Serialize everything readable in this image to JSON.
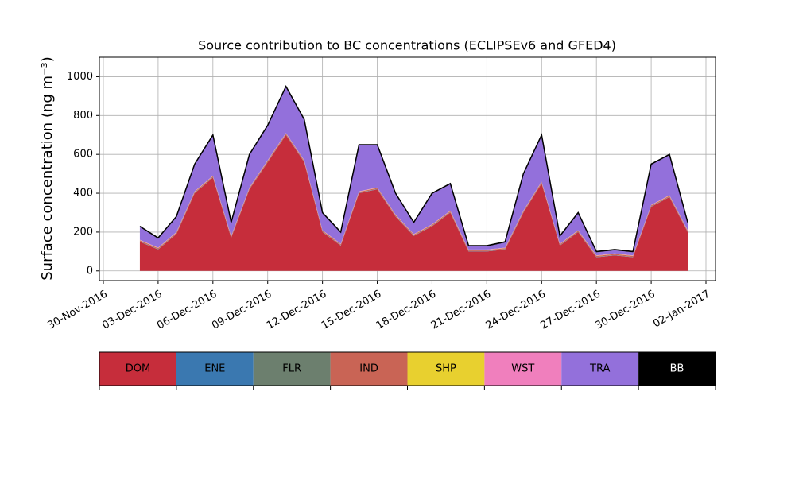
{
  "chart_data": {
    "type": "stacked_area",
    "title": "Source contribution to BC concentrations (ECLIPSEv6 and GFED4)",
    "y_label": "Surface concentration (ng m⁻³)",
    "x": [
      "2016-12-02",
      "2016-12-03",
      "2016-12-04",
      "2016-12-05",
      "2016-12-06",
      "2016-12-07",
      "2016-12-08",
      "2016-12-09",
      "2016-12-10",
      "2016-12-11",
      "2016-12-12",
      "2016-12-13",
      "2016-12-14",
      "2016-12-15",
      "2016-12-16",
      "2016-12-17",
      "2016-12-18",
      "2016-12-19",
      "2016-12-20",
      "2016-12-21",
      "2016-12-22",
      "2016-12-23",
      "2016-12-24",
      "2016-12-25",
      "2016-12-26",
      "2016-12-27",
      "2016-12-28",
      "2016-12-29",
      "2016-12-30",
      "2016-12-31",
      "2017-01-01"
    ],
    "series": [
      {
        "name": "DOM",
        "color": "#c62d3b",
        "values": [
          150,
          110,
          190,
          400,
          480,
          170,
          420,
          560,
          700,
          560,
          200,
          130,
          400,
          420,
          280,
          180,
          230,
          300,
          100,
          100,
          110,
          300,
          450,
          130,
          200,
          70,
          80,
          70,
          330,
          380,
          200
        ]
      },
      {
        "name": "ENE",
        "color": "#3a78b0",
        "values": [
          1,
          1,
          1,
          1,
          1,
          1,
          1,
          1,
          1,
          1,
          1,
          1,
          1,
          1,
          1,
          1,
          1,
          1,
          1,
          1,
          1,
          1,
          1,
          1,
          1,
          1,
          1,
          1,
          1,
          1,
          1
        ]
      },
      {
        "name": "FLR",
        "color": "#6c7f6e",
        "values": [
          1,
          1,
          1,
          1,
          1,
          1,
          1,
          1,
          1,
          1,
          1,
          1,
          1,
          1,
          1,
          1,
          1,
          1,
          1,
          1,
          1,
          1,
          1,
          1,
          1,
          1,
          1,
          1,
          1,
          1,
          1
        ]
      },
      {
        "name": "IND",
        "color": "#c96455",
        "values": [
          5,
          5,
          5,
          5,
          5,
          5,
          5,
          5,
          5,
          5,
          5,
          5,
          5,
          5,
          5,
          5,
          5,
          5,
          5,
          5,
          5,
          5,
          5,
          5,
          5,
          5,
          5,
          5,
          5,
          5,
          5
        ]
      },
      {
        "name": "SHP",
        "color": "#e8d02f",
        "values": [
          1,
          1,
          1,
          1,
          1,
          1,
          1,
          1,
          1,
          1,
          1,
          1,
          1,
          1,
          1,
          1,
          1,
          1,
          1,
          1,
          1,
          1,
          1,
          1,
          1,
          1,
          1,
          1,
          1,
          1,
          1
        ]
      },
      {
        "name": "WST",
        "color": "#f07fbd",
        "values": [
          2,
          2,
          2,
          2,
          2,
          2,
          2,
          2,
          2,
          2,
          2,
          2,
          2,
          2,
          2,
          2,
          2,
          2,
          2,
          2,
          2,
          2,
          2,
          2,
          2,
          2,
          2,
          2,
          2,
          2,
          2
        ]
      },
      {
        "name": "TRA",
        "color": "#9370db",
        "values": [
          66,
          46,
          76,
          136,
          206,
          66,
          166,
          176,
          236,
          206,
          86,
          56,
          236,
          216,
          106,
          56,
          156,
          136,
          16,
          16,
          26,
          186,
          236,
          36,
          86,
          16,
          16,
          16,
          206,
          206,
          36
        ]
      },
      {
        "name": "BB",
        "color": "#000000",
        "values": [
          4,
          4,
          4,
          4,
          4,
          4,
          4,
          4,
          4,
          4,
          4,
          4,
          4,
          4,
          4,
          4,
          4,
          4,
          4,
          4,
          4,
          4,
          4,
          4,
          4,
          4,
          4,
          4,
          4,
          4,
          4
        ]
      }
    ],
    "xlim": [
      "2016-11-30",
      "2017-01-02"
    ],
    "xticks": [
      {
        "value": "2016-11-30",
        "label": "30-Nov-2016"
      },
      {
        "value": "2016-12-03",
        "label": "03-Dec-2016"
      },
      {
        "value": "2016-12-06",
        "label": "06-Dec-2016"
      },
      {
        "value": "2016-12-09",
        "label": "09-Dec-2016"
      },
      {
        "value": "2016-12-12",
        "label": "12-Dec-2016"
      },
      {
        "value": "2016-12-15",
        "label": "15-Dec-2016"
      },
      {
        "value": "2016-12-18",
        "label": "18-Dec-2016"
      },
      {
        "value": "2016-12-21",
        "label": "21-Dec-2016"
      },
      {
        "value": "2016-12-24",
        "label": "24-Dec-2016"
      },
      {
        "value": "2016-12-27",
        "label": "27-Dec-2016"
      },
      {
        "value": "2016-12-30",
        "label": "30-Dec-2016"
      },
      {
        "value": "2017-01-02",
        "label": "02-Jan-2017"
      }
    ],
    "ylim": [
      -50,
      1100
    ],
    "yticks": [
      0,
      200,
      400,
      600,
      800,
      1000
    ],
    "grid": true
  }
}
